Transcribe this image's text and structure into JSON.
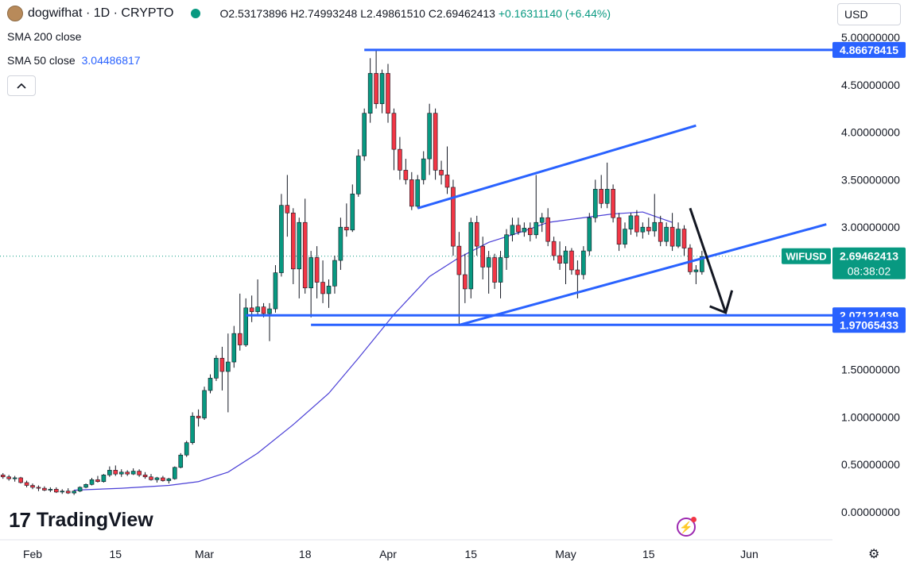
{
  "header": {
    "title": "dogwifhat · 1D · CRYPTO",
    "o": "O2.53173896",
    "h": "H2.74993248",
    "l": "L2.49861510",
    "c": "C2.69462413",
    "chg": "+0.16311140 (+6.44%)",
    "currency": "USD"
  },
  "indicators": {
    "sma200_label": "SMA 200 close",
    "sma50_label": "SMA 50 close",
    "sma50_value": "3.04486817"
  },
  "brand": "TradingView",
  "colors": {
    "up": "#089981",
    "down": "#f23645",
    "drawing": "#2962ff",
    "sma": "#4a3fd6"
  },
  "chart_data": {
    "type": "candlestick",
    "symbol": "WIFUSD",
    "title": "dogwifhat · 1D · CRYPTO",
    "y_ticks": [
      "5.00000000",
      "4.50000000",
      "4.00000000",
      "3.50000000",
      "3.00000000",
      "1.50000000",
      "1.00000000",
      "0.50000000",
      "0.00000000"
    ],
    "y_tick_values": [
      5.0,
      4.5,
      4.0,
      3.5,
      3.0,
      1.5,
      1.0,
      0.5,
      0.0
    ],
    "x_ticks": [
      {
        "label": "Feb",
        "date": "2024-02-01"
      },
      {
        "label": "15",
        "date": "2024-02-15"
      },
      {
        "label": "Mar",
        "date": "2024-03-01"
      },
      {
        "label": "18",
        "date": "2024-03-18"
      },
      {
        "label": "Apr",
        "date": "2024-04-01"
      },
      {
        "label": "15",
        "date": "2024-04-15"
      },
      {
        "label": "May",
        "date": "2024-05-01"
      },
      {
        "label": "15",
        "date": "2024-05-15"
      },
      {
        "label": "Jun",
        "date": "2024-06-01"
      }
    ],
    "price_labels": [
      {
        "text": "4.86678415",
        "value": 4.86678415
      },
      {
        "text": "2.07121439",
        "value": 2.07121439
      },
      {
        "text": "1.97065433",
        "value": 1.97065433
      }
    ],
    "current": {
      "symbol": "WIFUSD",
      "price": "2.69462413",
      "countdown": "08:38:02",
      "value": 2.69462413
    },
    "horizontal_lines": [
      {
        "value": 4.86678415,
        "from": "2024-03-28",
        "to": "2024-06-14"
      },
      {
        "value": 2.07121439,
        "from": "2024-03-08",
        "to": "2024-06-14"
      },
      {
        "value": 1.97065433,
        "from": "2024-03-19",
        "to": "2024-06-14"
      }
    ],
    "trend_lines": [
      {
        "from": {
          "date": "2024-04-06",
          "value": 3.2
        },
        "to": {
          "date": "2024-05-23",
          "value": 4.07
        }
      },
      {
        "from": {
          "date": "2024-04-13",
          "value": 1.97
        },
        "to": {
          "date": "2024-06-14",
          "value": 3.03
        }
      }
    ],
    "arrow": {
      "from": {
        "date": "2024-05-22",
        "value": 3.2
      },
      "to": {
        "date": "2024-05-28",
        "value": 2.1
      }
    },
    "sma50": [
      {
        "date": "2024-02-08",
        "value": 0.23
      },
      {
        "date": "2024-02-16",
        "value": 0.25
      },
      {
        "date": "2024-02-24",
        "value": 0.28
      },
      {
        "date": "2024-02-29",
        "value": 0.32
      },
      {
        "date": "2024-03-05",
        "value": 0.42
      },
      {
        "date": "2024-03-10",
        "value": 0.62
      },
      {
        "date": "2024-03-16",
        "value": 0.92
      },
      {
        "date": "2024-03-22",
        "value": 1.25
      },
      {
        "date": "2024-03-27",
        "value": 1.62
      },
      {
        "date": "2024-04-02",
        "value": 2.08
      },
      {
        "date": "2024-04-08",
        "value": 2.48
      },
      {
        "date": "2024-04-13",
        "value": 2.68
      },
      {
        "date": "2024-04-18",
        "value": 2.84
      },
      {
        "date": "2024-04-24",
        "value": 2.96
      },
      {
        "date": "2024-04-28",
        "value": 3.05
      },
      {
        "date": "2024-05-04",
        "value": 3.1
      },
      {
        "date": "2024-05-09",
        "value": 3.14
      },
      {
        "date": "2024-05-14",
        "value": 3.16
      },
      {
        "date": "2024-05-19",
        "value": 3.05
      }
    ],
    "candles": [
      {
        "date": "2024-01-27",
        "o": 0.39,
        "h": 0.41,
        "l": 0.35,
        "c": 0.37
      },
      {
        "date": "2024-01-28",
        "o": 0.37,
        "h": 0.39,
        "l": 0.33,
        "c": 0.35
      },
      {
        "date": "2024-01-29",
        "o": 0.35,
        "h": 0.38,
        "l": 0.32,
        "c": 0.36
      },
      {
        "date": "2024-01-30",
        "o": 0.36,
        "h": 0.37,
        "l": 0.3,
        "c": 0.31
      },
      {
        "date": "2024-01-31",
        "o": 0.31,
        "h": 0.33,
        "l": 0.26,
        "c": 0.28
      },
      {
        "date": "2024-02-01",
        "o": 0.28,
        "h": 0.3,
        "l": 0.24,
        "c": 0.26
      },
      {
        "date": "2024-02-02",
        "o": 0.26,
        "h": 0.28,
        "l": 0.22,
        "c": 0.25
      },
      {
        "date": "2024-02-03",
        "o": 0.25,
        "h": 0.27,
        "l": 0.22,
        "c": 0.23
      },
      {
        "date": "2024-02-04",
        "o": 0.23,
        "h": 0.26,
        "l": 0.21,
        "c": 0.24
      },
      {
        "date": "2024-02-05",
        "o": 0.24,
        "h": 0.26,
        "l": 0.2,
        "c": 0.21
      },
      {
        "date": "2024-02-06",
        "o": 0.21,
        "h": 0.24,
        "l": 0.19,
        "c": 0.22
      },
      {
        "date": "2024-02-07",
        "o": 0.22,
        "h": 0.25,
        "l": 0.19,
        "c": 0.2
      },
      {
        "date": "2024-02-08",
        "o": 0.2,
        "h": 0.23,
        "l": 0.18,
        "c": 0.22
      },
      {
        "date": "2024-02-09",
        "o": 0.22,
        "h": 0.27,
        "l": 0.21,
        "c": 0.26
      },
      {
        "date": "2024-02-10",
        "o": 0.26,
        "h": 0.3,
        "l": 0.25,
        "c": 0.29
      },
      {
        "date": "2024-02-11",
        "o": 0.29,
        "h": 0.36,
        "l": 0.28,
        "c": 0.34
      },
      {
        "date": "2024-02-12",
        "o": 0.34,
        "h": 0.38,
        "l": 0.31,
        "c": 0.32
      },
      {
        "date": "2024-02-13",
        "o": 0.32,
        "h": 0.4,
        "l": 0.31,
        "c": 0.39
      },
      {
        "date": "2024-02-14",
        "o": 0.39,
        "h": 0.48,
        "l": 0.37,
        "c": 0.44
      },
      {
        "date": "2024-02-15",
        "o": 0.44,
        "h": 0.49,
        "l": 0.38,
        "c": 0.4
      },
      {
        "date": "2024-02-16",
        "o": 0.4,
        "h": 0.45,
        "l": 0.37,
        "c": 0.42
      },
      {
        "date": "2024-02-17",
        "o": 0.42,
        "h": 0.44,
        "l": 0.38,
        "c": 0.4
      },
      {
        "date": "2024-02-18",
        "o": 0.4,
        "h": 0.46,
        "l": 0.39,
        "c": 0.43
      },
      {
        "date": "2024-02-19",
        "o": 0.43,
        "h": 0.45,
        "l": 0.37,
        "c": 0.39
      },
      {
        "date": "2024-02-20",
        "o": 0.39,
        "h": 0.42,
        "l": 0.35,
        "c": 0.37
      },
      {
        "date": "2024-02-21",
        "o": 0.37,
        "h": 0.4,
        "l": 0.33,
        "c": 0.34
      },
      {
        "date": "2024-02-22",
        "o": 0.34,
        "h": 0.37,
        "l": 0.31,
        "c": 0.36
      },
      {
        "date": "2024-02-23",
        "o": 0.36,
        "h": 0.38,
        "l": 0.32,
        "c": 0.33
      },
      {
        "date": "2024-02-24",
        "o": 0.33,
        "h": 0.36,
        "l": 0.3,
        "c": 0.35
      },
      {
        "date": "2024-02-25",
        "o": 0.35,
        "h": 0.48,
        "l": 0.34,
        "c": 0.47
      },
      {
        "date": "2024-02-26",
        "o": 0.47,
        "h": 0.62,
        "l": 0.46,
        "c": 0.6
      },
      {
        "date": "2024-02-27",
        "o": 0.6,
        "h": 0.75,
        "l": 0.58,
        "c": 0.73
      },
      {
        "date": "2024-02-28",
        "o": 0.73,
        "h": 1.05,
        "l": 0.71,
        "c": 1.01
      },
      {
        "date": "2024-02-29",
        "o": 1.01,
        "h": 1.08,
        "l": 0.9,
        "c": 0.99
      },
      {
        "date": "2024-03-01",
        "o": 0.99,
        "h": 1.32,
        "l": 0.97,
        "c": 1.28
      },
      {
        "date": "2024-03-02",
        "o": 1.28,
        "h": 1.45,
        "l": 1.25,
        "c": 1.41
      },
      {
        "date": "2024-03-03",
        "o": 1.41,
        "h": 1.65,
        "l": 1.38,
        "c": 1.62
      },
      {
        "date": "2024-03-04",
        "o": 1.62,
        "h": 1.74,
        "l": 1.28,
        "c": 1.48
      },
      {
        "date": "2024-03-05",
        "o": 1.48,
        "h": 1.88,
        "l": 1.05,
        "c": 1.58
      },
      {
        "date": "2024-03-06",
        "o": 1.58,
        "h": 1.96,
        "l": 1.52,
        "c": 1.88
      },
      {
        "date": "2024-03-07",
        "o": 1.88,
        "h": 2.3,
        "l": 1.7,
        "c": 1.76
      },
      {
        "date": "2024-03-08",
        "o": 1.76,
        "h": 2.25,
        "l": 1.74,
        "c": 2.15
      },
      {
        "date": "2024-03-09",
        "o": 2.15,
        "h": 2.28,
        "l": 2.0,
        "c": 2.11
      },
      {
        "date": "2024-03-10",
        "o": 2.11,
        "h": 2.45,
        "l": 2.07,
        "c": 2.16
      },
      {
        "date": "2024-03-11",
        "o": 2.16,
        "h": 2.2,
        "l": 2.05,
        "c": 2.09
      },
      {
        "date": "2024-03-12",
        "o": 2.09,
        "h": 2.2,
        "l": 1.8,
        "c": 2.14
      },
      {
        "date": "2024-03-13",
        "o": 2.14,
        "h": 2.6,
        "l": 2.1,
        "c": 2.52
      },
      {
        "date": "2024-03-14",
        "o": 2.52,
        "h": 3.35,
        "l": 2.48,
        "c": 3.23
      },
      {
        "date": "2024-03-15",
        "o": 3.23,
        "h": 3.55,
        "l": 2.9,
        "c": 3.15
      },
      {
        "date": "2024-03-16",
        "o": 3.15,
        "h": 3.2,
        "l": 2.4,
        "c": 2.56
      },
      {
        "date": "2024-03-17",
        "o": 2.56,
        "h": 3.1,
        "l": 2.25,
        "c": 3.05
      },
      {
        "date": "2024-03-18",
        "o": 3.05,
        "h": 3.3,
        "l": 2.3,
        "c": 2.36
      },
      {
        "date": "2024-03-19",
        "o": 2.36,
        "h": 2.75,
        "l": 2.05,
        "c": 2.68
      },
      {
        "date": "2024-03-20",
        "o": 2.68,
        "h": 2.8,
        "l": 2.25,
        "c": 2.42
      },
      {
        "date": "2024-03-21",
        "o": 2.42,
        "h": 2.65,
        "l": 2.2,
        "c": 2.3
      },
      {
        "date": "2024-03-22",
        "o": 2.3,
        "h": 2.45,
        "l": 2.15,
        "c": 2.38
      },
      {
        "date": "2024-03-23",
        "o": 2.38,
        "h": 2.7,
        "l": 2.3,
        "c": 2.65
      },
      {
        "date": "2024-03-24",
        "o": 2.65,
        "h": 3.1,
        "l": 2.55,
        "c": 3.0
      },
      {
        "date": "2024-03-25",
        "o": 3.0,
        "h": 3.25,
        "l": 2.9,
        "c": 2.97
      },
      {
        "date": "2024-03-26",
        "o": 2.97,
        "h": 3.45,
        "l": 2.95,
        "c": 3.35
      },
      {
        "date": "2024-03-27",
        "o": 3.35,
        "h": 3.82,
        "l": 3.32,
        "c": 3.75
      },
      {
        "date": "2024-03-28",
        "o": 3.75,
        "h": 4.25,
        "l": 3.7,
        "c": 4.2
      },
      {
        "date": "2024-03-29",
        "o": 4.2,
        "h": 4.78,
        "l": 4.1,
        "c": 4.62
      },
      {
        "date": "2024-03-30",
        "o": 4.62,
        "h": 4.87,
        "l": 4.25,
        "c": 4.3
      },
      {
        "date": "2024-03-31",
        "o": 4.3,
        "h": 4.66,
        "l": 4.2,
        "c": 4.62
      },
      {
        "date": "2024-04-01",
        "o": 4.62,
        "h": 4.72,
        "l": 4.1,
        "c": 4.2
      },
      {
        "date": "2024-04-02",
        "o": 4.2,
        "h": 4.25,
        "l": 3.6,
        "c": 3.82
      },
      {
        "date": "2024-04-03",
        "o": 3.82,
        "h": 3.95,
        "l": 3.5,
        "c": 3.6
      },
      {
        "date": "2024-04-04",
        "o": 3.6,
        "h": 3.72,
        "l": 3.45,
        "c": 3.5
      },
      {
        "date": "2024-04-05",
        "o": 3.5,
        "h": 3.58,
        "l": 3.18,
        "c": 3.22
      },
      {
        "date": "2024-04-06",
        "o": 3.22,
        "h": 3.55,
        "l": 3.2,
        "c": 3.5
      },
      {
        "date": "2024-04-07",
        "o": 3.5,
        "h": 3.8,
        "l": 3.45,
        "c": 3.72
      },
      {
        "date": "2024-04-08",
        "o": 3.72,
        "h": 4.3,
        "l": 3.55,
        "c": 4.2
      },
      {
        "date": "2024-04-09",
        "o": 4.2,
        "h": 4.25,
        "l": 3.5,
        "c": 3.6
      },
      {
        "date": "2024-04-10",
        "o": 3.6,
        "h": 3.7,
        "l": 3.45,
        "c": 3.55
      },
      {
        "date": "2024-04-11",
        "o": 3.55,
        "h": 3.85,
        "l": 3.35,
        "c": 3.42
      },
      {
        "date": "2024-04-12",
        "o": 3.42,
        "h": 3.5,
        "l": 2.7,
        "c": 2.8
      },
      {
        "date": "2024-04-13",
        "o": 2.8,
        "h": 2.95,
        "l": 1.97,
        "c": 2.5
      },
      {
        "date": "2024-04-14",
        "o": 2.5,
        "h": 2.72,
        "l": 2.2,
        "c": 2.35
      },
      {
        "date": "2024-04-15",
        "o": 2.35,
        "h": 3.1,
        "l": 2.25,
        "c": 3.05
      },
      {
        "date": "2024-04-16",
        "o": 3.05,
        "h": 3.12,
        "l": 2.7,
        "c": 2.8
      },
      {
        "date": "2024-04-17",
        "o": 2.8,
        "h": 2.9,
        "l": 2.45,
        "c": 2.58
      },
      {
        "date": "2024-04-18",
        "o": 2.58,
        "h": 2.75,
        "l": 2.3,
        "c": 2.68
      },
      {
        "date": "2024-04-19",
        "o": 2.68,
        "h": 2.72,
        "l": 2.35,
        "c": 2.42
      },
      {
        "date": "2024-04-20",
        "o": 2.42,
        "h": 2.75,
        "l": 2.25,
        "c": 2.68
      },
      {
        "date": "2024-04-21",
        "o": 2.68,
        "h": 2.98,
        "l": 2.55,
        "c": 2.92
      },
      {
        "date": "2024-04-22",
        "o": 2.92,
        "h": 3.1,
        "l": 2.85,
        "c": 3.02
      },
      {
        "date": "2024-04-23",
        "o": 3.02,
        "h": 3.1,
        "l": 2.92,
        "c": 2.95
      },
      {
        "date": "2024-04-24",
        "o": 2.95,
        "h": 3.05,
        "l": 2.9,
        "c": 2.99
      },
      {
        "date": "2024-04-25",
        "o": 2.99,
        "h": 3.05,
        "l": 2.85,
        "c": 2.92
      },
      {
        "date": "2024-04-26",
        "o": 2.92,
        "h": 3.55,
        "l": 2.88,
        "c": 3.05
      },
      {
        "date": "2024-04-27",
        "o": 3.05,
        "h": 3.15,
        "l": 2.95,
        "c": 3.1
      },
      {
        "date": "2024-04-28",
        "o": 3.1,
        "h": 3.2,
        "l": 2.8,
        "c": 2.85
      },
      {
        "date": "2024-04-29",
        "o": 2.85,
        "h": 2.9,
        "l": 2.65,
        "c": 2.7
      },
      {
        "date": "2024-04-30",
        "o": 2.7,
        "h": 2.85,
        "l": 2.55,
        "c": 2.62
      },
      {
        "date": "2024-05-01",
        "o": 2.62,
        "h": 2.8,
        "l": 2.4,
        "c": 2.75
      },
      {
        "date": "2024-05-02",
        "o": 2.75,
        "h": 2.78,
        "l": 2.5,
        "c": 2.55
      },
      {
        "date": "2024-05-03",
        "o": 2.55,
        "h": 2.65,
        "l": 2.25,
        "c": 2.5
      },
      {
        "date": "2024-05-04",
        "o": 2.5,
        "h": 2.8,
        "l": 2.45,
        "c": 2.75
      },
      {
        "date": "2024-05-05",
        "o": 2.75,
        "h": 3.15,
        "l": 2.7,
        "c": 3.1
      },
      {
        "date": "2024-05-06",
        "o": 3.1,
        "h": 3.5,
        "l": 3.05,
        "c": 3.4
      },
      {
        "date": "2024-05-07",
        "o": 3.4,
        "h": 3.55,
        "l": 3.2,
        "c": 3.25
      },
      {
        "date": "2024-05-08",
        "o": 3.25,
        "h": 3.68,
        "l": 3.2,
        "c": 3.4
      },
      {
        "date": "2024-05-09",
        "o": 3.4,
        "h": 3.45,
        "l": 3.05,
        "c": 3.1
      },
      {
        "date": "2024-05-10",
        "o": 3.1,
        "h": 3.15,
        "l": 2.75,
        "c": 2.82
      },
      {
        "date": "2024-05-11",
        "o": 2.82,
        "h": 3.05,
        "l": 2.78,
        "c": 2.98
      },
      {
        "date": "2024-05-12",
        "o": 2.98,
        "h": 3.15,
        "l": 2.92,
        "c": 3.12
      },
      {
        "date": "2024-05-13",
        "o": 3.12,
        "h": 3.18,
        "l": 2.9,
        "c": 2.95
      },
      {
        "date": "2024-05-14",
        "o": 2.95,
        "h": 3.05,
        "l": 2.88,
        "c": 3.0
      },
      {
        "date": "2024-05-15",
        "o": 3.0,
        "h": 3.1,
        "l": 2.92,
        "c": 2.96
      },
      {
        "date": "2024-05-16",
        "o": 2.96,
        "h": 3.35,
        "l": 2.9,
        "c": 3.05
      },
      {
        "date": "2024-05-17",
        "o": 3.05,
        "h": 3.12,
        "l": 2.8,
        "c": 2.85
      },
      {
        "date": "2024-05-18",
        "o": 2.85,
        "h": 3.05,
        "l": 2.8,
        "c": 3.0
      },
      {
        "date": "2024-05-19",
        "o": 3.0,
        "h": 3.15,
        "l": 2.75,
        "c": 2.8
      },
      {
        "date": "2024-05-20",
        "o": 2.8,
        "h": 3.05,
        "l": 2.78,
        "c": 2.98
      },
      {
        "date": "2024-05-21",
        "o": 2.98,
        "h": 3.02,
        "l": 2.7,
        "c": 2.78
      },
      {
        "date": "2024-05-22",
        "o": 2.78,
        "h": 2.82,
        "l": 2.5,
        "c": 2.53
      },
      {
        "date": "2024-05-23",
        "o": 2.53,
        "h": 2.6,
        "l": 2.4,
        "c": 2.55
      },
      {
        "date": "2024-05-24",
        "o": 2.53,
        "h": 2.75,
        "l": 2.5,
        "c": 2.69
      }
    ]
  }
}
